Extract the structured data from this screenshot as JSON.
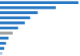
{
  "chart_data": {
    "type": "bar",
    "orientation": "horizontal",
    "categories": [
      null,
      null,
      null,
      null,
      null,
      null,
      null,
      null,
      null,
      null,
      null
    ],
    "values": [
      260,
      185,
      125,
      100,
      82,
      60,
      42,
      28,
      20,
      14,
      8
    ],
    "colors": [
      "#2878c3",
      "#2878c3",
      "#2878c3",
      "#2878c3",
      "#2878c3",
      "#2878c3",
      "#9e9e9e",
      "#2878c3",
      "#2878c3",
      "#2878c3",
      "#b0c8e8"
    ],
    "xlim": [
      0,
      265.2
    ],
    "grid": false,
    "tick_labels": false
  }
}
